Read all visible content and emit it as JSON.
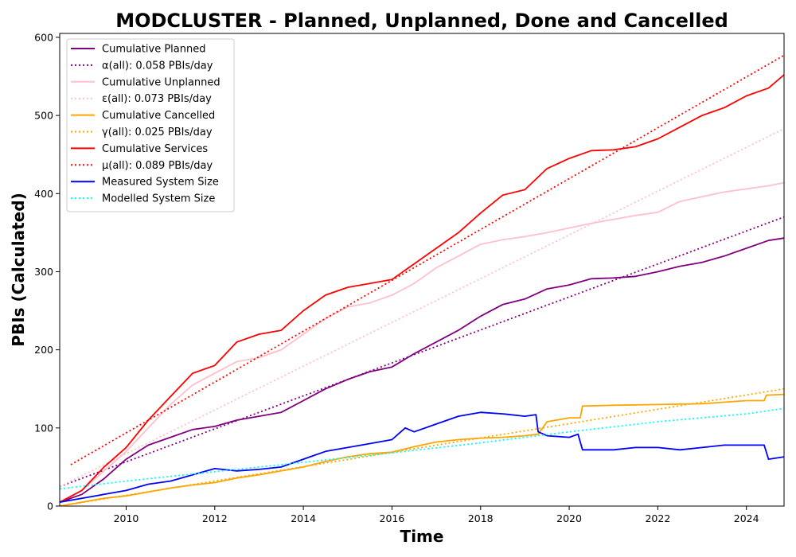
{
  "chart_data": {
    "type": "line",
    "title": "MODCLUSTER - Planned, Unplanned, Done  and Cancelled",
    "xlabel": "Time",
    "ylabel": "PBIs (Calculated)",
    "xlim": [
      2008.5,
      2024.85
    ],
    "ylim": [
      0,
      605
    ],
    "x_ticks": [
      2010,
      2012,
      2014,
      2016,
      2018,
      2020,
      2022,
      2024
    ],
    "y_ticks": [
      0,
      100,
      200,
      300,
      400,
      500,
      600
    ],
    "grid": false,
    "legend_position": "top-left",
    "series": [
      {
        "name": "Cumulative Planned",
        "color": "#800080",
        "style": "solid",
        "x": [
          2008.5,
          2009.0,
          2009.5,
          2010.0,
          2010.5,
          2011.0,
          2011.5,
          2012.0,
          2012.5,
          2013.0,
          2013.5,
          2014.0,
          2014.5,
          2015.0,
          2015.5,
          2016.0,
          2016.5,
          2017.0,
          2017.5,
          2018.0,
          2018.5,
          2019.0,
          2019.5,
          2020.0,
          2020.5,
          2021.0,
          2021.5,
          2022.0,
          2022.5,
          2023.0,
          2023.5,
          2024.0,
          2024.5,
          2024.85
        ],
        "y": [
          5,
          15,
          35,
          60,
          78,
          88,
          98,
          102,
          110,
          115,
          120,
          135,
          150,
          162,
          172,
          178,
          195,
          210,
          225,
          243,
          258,
          265,
          278,
          283,
          291,
          292,
          294,
          300,
          307,
          312,
          320,
          330,
          340,
          343
        ]
      },
      {
        "name": "α(all): 0.058 PBIs/day",
        "color": "#800080",
        "style": "dotted",
        "x": [
          2008.5,
          2024.85
        ],
        "y": [
          25,
          370
        ]
      },
      {
        "name": "Cumulative Unplanned",
        "color": "#ffc0cb",
        "style": "solid",
        "x": [
          2008.5,
          2009.0,
          2009.5,
          2010.0,
          2010.5,
          2011.0,
          2011.5,
          2012.0,
          2012.5,
          2013.0,
          2013.5,
          2014.0,
          2014.5,
          2015.0,
          2015.5,
          2016.0,
          2016.5,
          2017.0,
          2017.5,
          2018.0,
          2018.5,
          2019.0,
          2019.5,
          2020.0,
          2020.5,
          2021.0,
          2021.5,
          2022.0,
          2022.5,
          2023.0,
          2023.5,
          2024.0,
          2024.5,
          2024.85
        ],
        "y": [
          5,
          20,
          45,
          70,
          100,
          130,
          155,
          170,
          185,
          190,
          200,
          220,
          240,
          255,
          260,
          270,
          285,
          305,
          320,
          335,
          341,
          345,
          350,
          356,
          362,
          367,
          372,
          376,
          390,
          396,
          402,
          406,
          410,
          414
        ]
      },
      {
        "name": "ε(all): 0.073 PBIs/day",
        "color": "#ffc0cb",
        "style": "dotted",
        "x": [
          2008.5,
          2024.85
        ],
        "y": [
          25,
          483
        ]
      },
      {
        "name": "Cumulative Cancelled",
        "color": "#ffa500",
        "style": "solid",
        "x": [
          2008.5,
          2009.0,
          2009.5,
          2010.0,
          2010.5,
          2011.0,
          2011.5,
          2012.0,
          2012.5,
          2013.0,
          2013.5,
          2014.0,
          2014.5,
          2015.0,
          2015.5,
          2016.0,
          2016.5,
          2017.0,
          2017.5,
          2018.0,
          2018.5,
          2019.0,
          2019.3,
          2019.5,
          2020.0,
          2020.25,
          2020.3,
          2021.0,
          2022.0,
          2023.0,
          2024.0,
          2024.4,
          2024.45,
          2024.85
        ],
        "y": [
          0,
          5,
          10,
          13,
          18,
          23,
          27,
          30,
          36,
          40,
          45,
          50,
          57,
          63,
          67,
          69,
          76,
          82,
          85,
          87,
          88,
          90,
          92,
          108,
          113,
          113,
          128,
          129,
          130,
          131,
          135,
          135,
          142,
          143
        ]
      },
      {
        "name": "γ(all): 0.025 PBIs/day",
        "color": "#ffa500",
        "style": "dotted",
        "x": [
          2008.5,
          2024.85
        ],
        "y": [
          0,
          150
        ]
      },
      {
        "name": "Cumulative Services",
        "color": "#ff0000",
        "style": "solid",
        "x": [
          2008.5,
          2009.0,
          2009.5,
          2010.0,
          2010.5,
          2011.0,
          2011.5,
          2012.0,
          2012.5,
          2013.0,
          2013.5,
          2014.0,
          2014.5,
          2015.0,
          2015.5,
          2016.0,
          2016.5,
          2017.0,
          2017.5,
          2018.0,
          2018.5,
          2019.0,
          2019.5,
          2020.0,
          2020.5,
          2021.0,
          2021.5,
          2022.0,
          2022.5,
          2023.0,
          2023.5,
          2024.0,
          2024.5,
          2024.85
        ],
        "y": [
          5,
          20,
          50,
          75,
          110,
          140,
          170,
          180,
          210,
          220,
          225,
          250,
          270,
          280,
          285,
          290,
          310,
          330,
          350,
          375,
          398,
          405,
          432,
          445,
          455,
          456,
          460,
          470,
          485,
          500,
          510,
          525,
          535,
          552
        ]
      },
      {
        "name": "μ(all): 0.089 PBIs/day",
        "color": "#ff0000",
        "style": "dotted",
        "x": [
          2008.75,
          2024.85
        ],
        "y": [
          53,
          577
        ]
      },
      {
        "name": "Measured System Size",
        "color": "#0000ff",
        "style": "solid",
        "x": [
          2008.5,
          2009.0,
          2009.5,
          2010.0,
          2010.5,
          2011.0,
          2011.5,
          2012.0,
          2012.5,
          2013.0,
          2013.5,
          2014.0,
          2014.5,
          2015.0,
          2015.5,
          2016.0,
          2016.3,
          2016.5,
          2017.0,
          2017.5,
          2018.0,
          2018.5,
          2019.0,
          2019.25,
          2019.3,
          2019.5,
          2020.0,
          2020.2,
          2020.3,
          2021.0,
          2021.5,
          2022.0,
          2022.5,
          2023.0,
          2023.5,
          2024.0,
          2024.4,
          2024.5,
          2024.85
        ],
        "y": [
          5,
          10,
          15,
          20,
          28,
          32,
          40,
          48,
          45,
          47,
          50,
          60,
          70,
          75,
          80,
          85,
          100,
          95,
          105,
          115,
          120,
          118,
          115,
          117,
          95,
          90,
          88,
          92,
          72,
          72,
          75,
          75,
          72,
          75,
          78,
          78,
          78,
          60,
          63
        ]
      },
      {
        "name": "Modelled System Size",
        "color": "#00ffff",
        "style": "dotted",
        "x": [
          2008.5,
          2010.0,
          2012.0,
          2014.0,
          2016.0,
          2018.0,
          2020.0,
          2022.0,
          2024.0,
          2024.85
        ],
        "y": [
          22,
          32,
          44,
          56,
          68,
          81,
          95,
          108,
          118,
          125
        ]
      }
    ]
  }
}
